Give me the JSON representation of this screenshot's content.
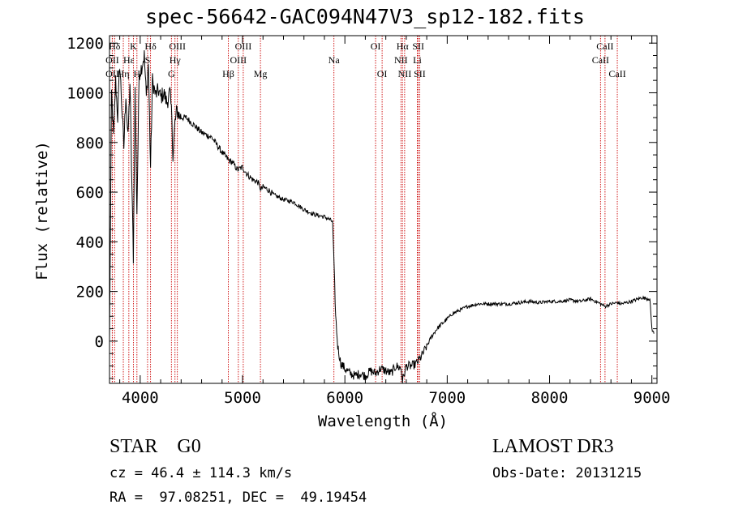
{
  "header": {
    "title": "spec-56642-GAC094N47V3_sp12-182.fits"
  },
  "chart_data": {
    "type": "line",
    "title": "spec-56642-GAC094N47V3_sp12-182.fits",
    "xlabel": "Wavelength (Å)",
    "ylabel": "Flux (relative)",
    "xlim": [
      3700,
      9050
    ],
    "ylim": [
      -170,
      1230
    ],
    "x_ticks": [
      4000,
      5000,
      6000,
      7000,
      8000,
      9000
    ],
    "y_ticks": [
      0,
      200,
      400,
      600,
      800,
      1000,
      1200
    ],
    "grid": false,
    "series": [
      {
        "name": "flux",
        "color": "#000000",
        "x": [
          3700,
          3720,
          3740,
          3760,
          3780,
          3800,
          3820,
          3840,
          3860,
          3880,
          3900,
          3920,
          3933,
          3950,
          3968,
          3990,
          4010,
          4040,
          4060,
          4080,
          4101,
          4120,
          4150,
          4180,
          4200,
          4230,
          4260,
          4290,
          4310,
          4320,
          4340,
          4360,
          4380,
          4400,
          4450,
          4500,
          4550,
          4600,
          4650,
          4700,
          4750,
          4800,
          4861,
          4900,
          4950,
          5000,
          5050,
          5100,
          5150,
          5180,
          5200,
          5250,
          5300,
          5400,
          5500,
          5600,
          5700,
          5800,
          5850,
          5880,
          5895,
          5910,
          5930,
          5960,
          6000,
          6050,
          6100,
          6150,
          6200,
          6250,
          6300,
          6350,
          6400,
          6450,
          6500,
          6550,
          6563,
          6600,
          6650,
          6700,
          6750,
          6800,
          6850,
          6900,
          6950,
          7000,
          7050,
          7100,
          7150,
          7200,
          7300,
          7400,
          7500,
          7600,
          7700,
          7800,
          7900,
          8000,
          8100,
          8200,
          8300,
          8400,
          8450,
          8500,
          8542,
          8600,
          8662,
          8700,
          8800,
          8900,
          8980,
          9000,
          9020
        ],
        "y": [
          0,
          1000,
          820,
          1050,
          900,
          1120,
          950,
          780,
          1000,
          810,
          1040,
          600,
          340,
          1010,
          520,
          1080,
          1100,
          1150,
          980,
          1120,
          700,
          1050,
          990,
          1010,
          980,
          1000,
          960,
          1000,
          900,
          740,
          880,
          930,
          910,
          900,
          900,
          880,
          860,
          840,
          830,
          820,
          790,
          760,
          730,
          720,
          690,
          700,
          670,
          650,
          640,
          610,
          620,
          610,
          590,
          570,
          560,
          530,
          510,
          500,
          490,
          480,
          300,
          100,
          -20,
          -90,
          -110,
          -130,
          -140,
          -130,
          -140,
          -120,
          -130,
          -110,
          -120,
          -130,
          -100,
          -110,
          -160,
          -100,
          -100,
          -90,
          -60,
          -20,
          20,
          50,
          70,
          90,
          110,
          120,
          130,
          140,
          150,
          150,
          150,
          150,
          155,
          160,
          155,
          160,
          160,
          165,
          160,
          170,
          160,
          150,
          140,
          150,
          155,
          150,
          160,
          175,
          170,
          50,
          30
        ]
      }
    ],
    "spectral_lines": [
      {
        "label": "Hδ",
        "wavelength": 3750,
        "row": 0
      },
      {
        "label": "K",
        "wavelength": 3934,
        "row": 0
      },
      {
        "label": "Hδ",
        "wavelength": 4101,
        "row": 0
      },
      {
        "label": "OII",
        "wavelength": 3727,
        "row": 1
      },
      {
        "label": "Hε",
        "wavelength": 3889,
        "row": 1
      },
      {
        "label": "S",
        "wavelength": 4072,
        "row": 1
      },
      {
        "label": "OII",
        "wavelength": 3727,
        "row": 2
      },
      {
        "label": "Hη",
        "wavelength": 3835,
        "row": 2
      },
      {
        "label": "H",
        "wavelength": 3968,
        "row": 2
      },
      {
        "label": "OIII",
        "wavelength": 4363,
        "row": 0
      },
      {
        "label": "Hγ",
        "wavelength": 4340,
        "row": 1
      },
      {
        "label": "G",
        "wavelength": 4305,
        "row": 2
      },
      {
        "label": "OIII",
        "wavelength": 5007,
        "row": 0
      },
      {
        "label": "OIII",
        "wavelength": 4959,
        "row": 1
      },
      {
        "label": "Hβ",
        "wavelength": 4861,
        "row": 2
      },
      {
        "label": "Mg",
        "wavelength": 5175,
        "row": 2
      },
      {
        "label": "Na",
        "wavelength": 5893,
        "row": 1
      },
      {
        "label": "OI",
        "wavelength": 6300,
        "row": 0
      },
      {
        "label": "OI",
        "wavelength": 6364,
        "row": 2
      },
      {
        "label": "Hα",
        "wavelength": 6563,
        "row": 0
      },
      {
        "label": "SII",
        "wavelength": 6717,
        "row": 0
      },
      {
        "label": "NII",
        "wavelength": 6548,
        "row": 1
      },
      {
        "label": "Li",
        "wavelength": 6708,
        "row": 1
      },
      {
        "label": "NII",
        "wavelength": 6584,
        "row": 2
      },
      {
        "label": "SII",
        "wavelength": 6731,
        "row": 2
      },
      {
        "label": "CaII",
        "wavelength": 8542,
        "row": 0
      },
      {
        "label": "CaII",
        "wavelength": 8498,
        "row": 1
      },
      {
        "label": "CaII",
        "wavelength": 8662,
        "row": 2
      }
    ],
    "line_marker_color": "#cc0000"
  },
  "info": {
    "object_type": "STAR    G0",
    "survey": "LAMOST DR3",
    "cz": "cz = 46.4 ± 114.3 km/s",
    "obs_date": "Obs-Date: 20131215",
    "ra_dec": "RA =  97.08251, DEC =  49.19454"
  }
}
